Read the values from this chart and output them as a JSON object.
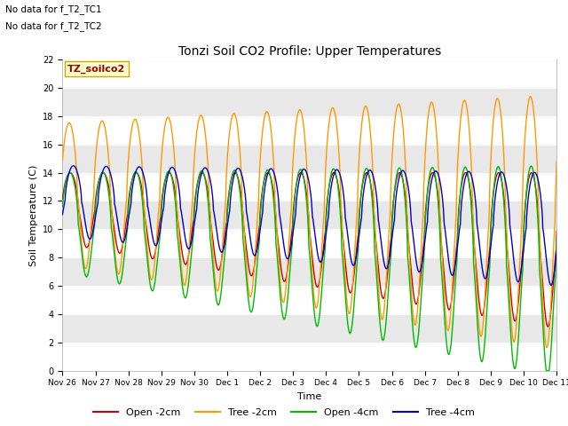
{
  "title": "Tonzi Soil CO2 Profile: Upper Temperatures",
  "ylabel": "Soil Temperature (C)",
  "xlabel": "Time",
  "ylim": [
    0,
    22
  ],
  "annotation1": "No data for f_T2_TC1",
  "annotation2": "No data for f_T2_TC2",
  "legend_box_label": "TZ_soilco2",
  "colors": {
    "open_2cm": "#cc0000",
    "tree_2cm": "#ff9900",
    "open_4cm": "#00bb00",
    "tree_4cm": "#0000cc"
  },
  "legend_labels": [
    "Open -2cm",
    "Tree -2cm",
    "Open -4cm",
    "Tree -4cm"
  ],
  "xtick_labels": [
    "Nov 26",
    "Nov 27",
    "Nov 28",
    "Nov 29",
    "Nov 30",
    "Dec 1",
    "Dec 2",
    "Dec 3",
    "Dec 4",
    "Dec 5",
    "Dec 6",
    "Dec 7",
    "Dec 8",
    "Dec 9",
    "Dec 10",
    "Dec 11"
  ],
  "band_color": "#e8e8e8",
  "figsize": [
    6.4,
    4.8
  ],
  "dpi": 100
}
